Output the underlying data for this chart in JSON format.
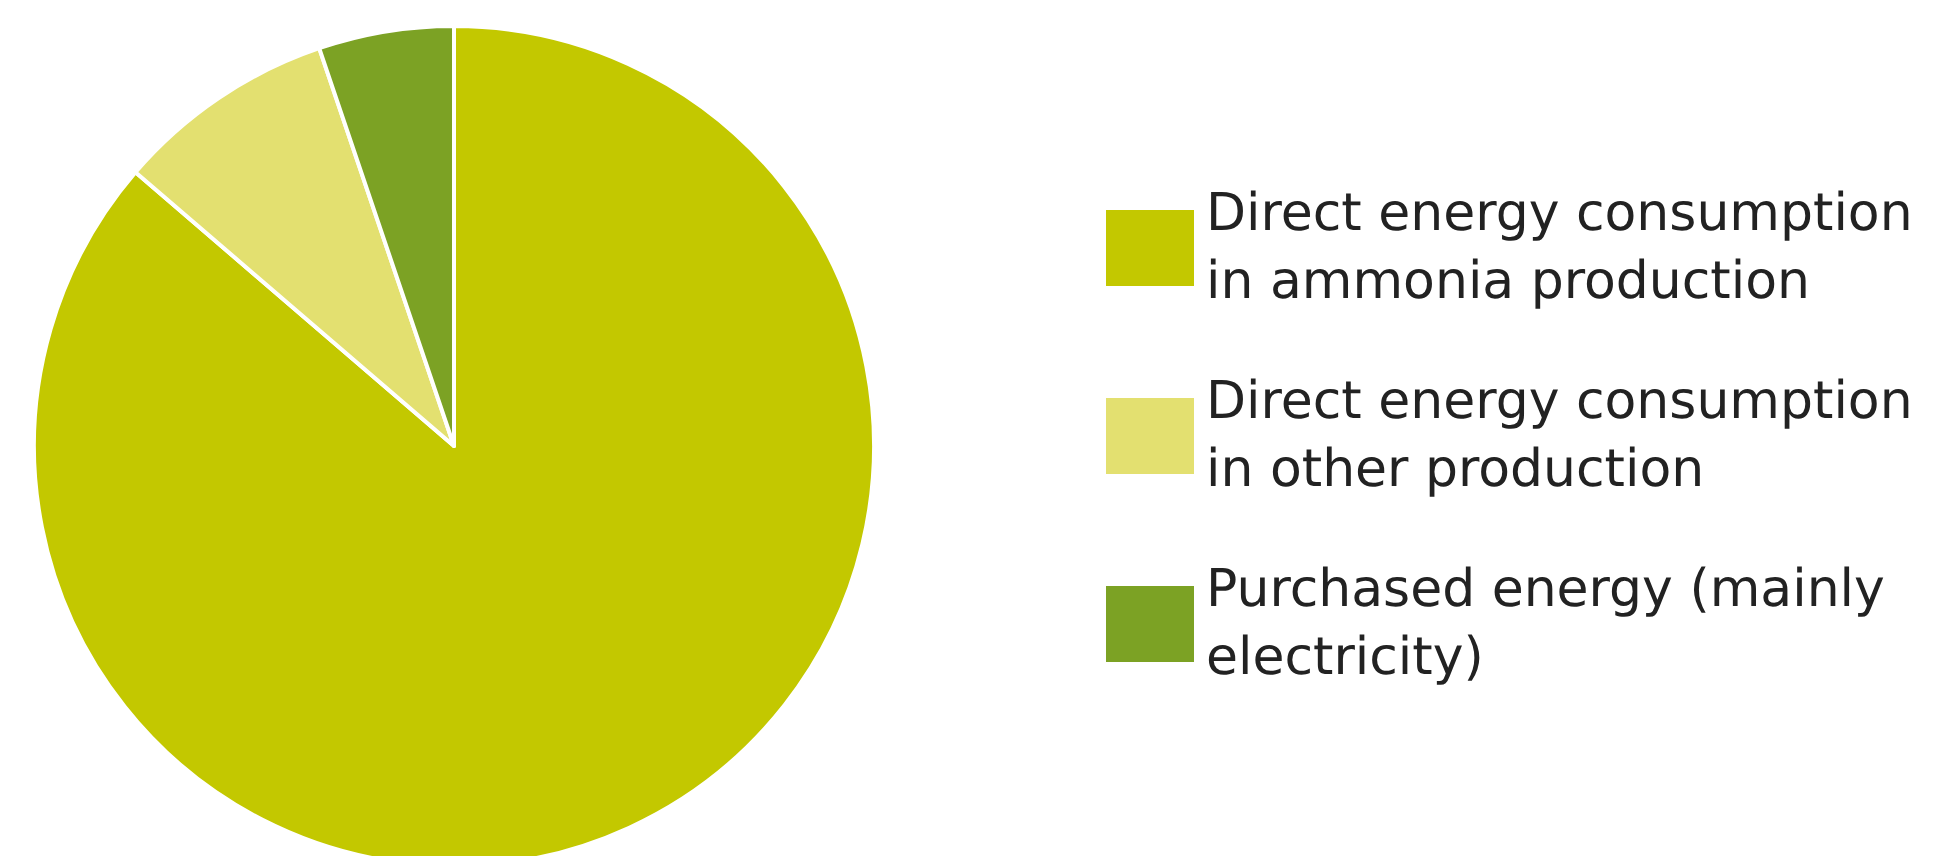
{
  "chart_data": {
    "type": "pie",
    "categories": [
      "Direct energy consumption in ammonia production",
      "Direct energy consumption in other production",
      "Purchased energy (mainly electricity)"
    ],
    "values": [
      86.3,
      8.5,
      5.2
    ],
    "colors": [
      "#c3c800",
      "#e3e070",
      "#7ca224"
    ],
    "legend": "right"
  }
}
